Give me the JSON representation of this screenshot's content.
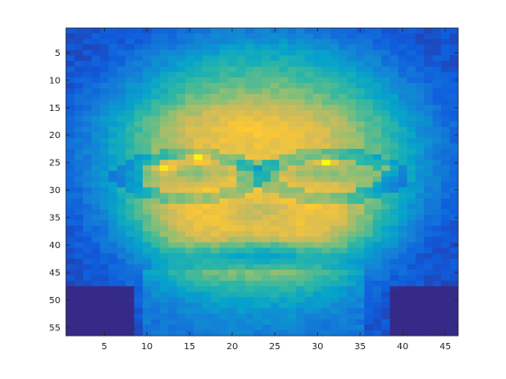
{
  "chart_data": {
    "type": "heatmap",
    "title": "",
    "xlabel": "",
    "ylabel": "",
    "x_range": [
      0.5,
      46.5
    ],
    "y_range": [
      0.5,
      56.5
    ],
    "y_direction": "top-to-bottom",
    "grid": false,
    "colorbar": false,
    "colormap": "parula",
    "colormap_stops": [
      "#352a87",
      "#0f5cdd",
      "#1481d6",
      "#06a4ca",
      "#2eb7a4",
      "#87bf77",
      "#d1bb59",
      "#fec832",
      "#f9fb0e"
    ],
    "columns": 46,
    "rows": 56,
    "x_ticks": [
      5,
      10,
      15,
      20,
      25,
      30,
      35,
      40,
      45
    ],
    "y_ticks": [
      5,
      10,
      15,
      20,
      25,
      30,
      35,
      40,
      45,
      50,
      55
    ],
    "x_tick_labels": [
      "5",
      "10",
      "15",
      "20",
      "25",
      "30",
      "35",
      "40",
      "45"
    ],
    "y_tick_labels": [
      "5",
      "10",
      "15",
      "20",
      "25",
      "30",
      "35",
      "40",
      "45",
      "50",
      "55"
    ]
  }
}
